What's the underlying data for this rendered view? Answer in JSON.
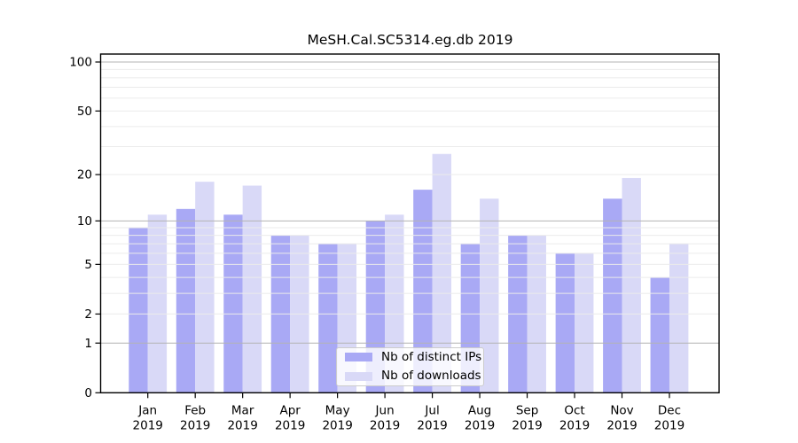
{
  "chart_data": {
    "type": "bar",
    "title": "MeSH.Cal.SC5314.eg.db 2019",
    "months": [
      "Jan",
      "Feb",
      "Mar",
      "Apr",
      "May",
      "Jun",
      "Jul",
      "Aug",
      "Sep",
      "Oct",
      "Nov",
      "Dec"
    ],
    "year": "2019",
    "series": [
      {
        "name": "Nb of distinct IPs",
        "color": "#a9a9f5",
        "values": [
          9,
          12,
          11,
          8,
          7,
          10,
          16,
          7,
          8,
          6,
          14,
          4
        ]
      },
      {
        "name": "Nb of downloads",
        "color": "#d9d9f7",
        "values": [
          11,
          18,
          17,
          8,
          7,
          11,
          27,
          14,
          8,
          6,
          19,
          7
        ]
      }
    ],
    "yscale": "log10(value+1)",
    "y_tick_labels": [
      "0",
      "1",
      "2",
      "5",
      "10",
      "20",
      "50",
      "100"
    ],
    "y_tick_values": [
      0,
      1,
      2,
      5,
      10,
      20,
      50,
      100
    ],
    "ylim": [
      0,
      110
    ],
    "grid": "horizontal",
    "grid_minor_values": [
      2,
      3,
      4,
      5,
      6,
      7,
      8,
      9,
      20,
      30,
      40,
      50,
      60,
      70,
      80,
      90
    ],
    "grid_major_values": [
      1,
      10,
      100
    ],
    "legend_position": "lower center",
    "colors": {
      "axis": "#000000",
      "grid_major": "#b3b3b3",
      "grid_minor": "#ebebeb",
      "text": "#000000"
    }
  }
}
